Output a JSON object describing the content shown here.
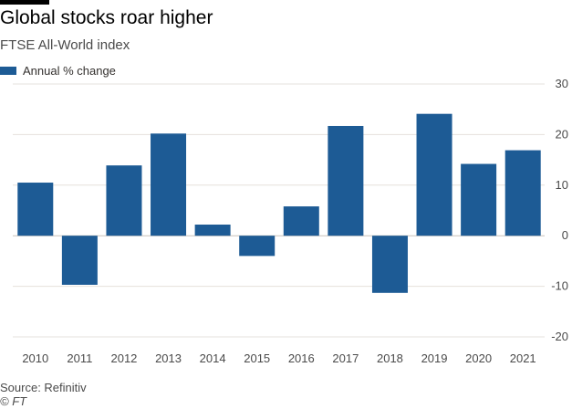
{
  "header": {
    "title": "Global stocks roar higher",
    "subtitle": "FTSE All-World index"
  },
  "legend": {
    "label": "Annual % change"
  },
  "colors": {
    "bar": "#1d5b95",
    "grid": "#e6e1dc",
    "zero": "#c9c2bb",
    "tick": "#4a4a4a",
    "accent_bar": "#000000"
  },
  "chart_data": {
    "type": "bar",
    "title": "Global stocks roar higher",
    "subtitle": "FTSE All-World index",
    "xlabel": "",
    "ylabel": "Annual % change",
    "categories": [
      "2010",
      "2011",
      "2012",
      "2013",
      "2014",
      "2015",
      "2016",
      "2017",
      "2018",
      "2019",
      "2020",
      "2021"
    ],
    "series": [
      {
        "name": "Annual % change",
        "values": [
          10.5,
          -9.7,
          13.9,
          20.2,
          2.2,
          -4.0,
          5.8,
          21.7,
          -11.3,
          24.1,
          14.2,
          16.9
        ]
      }
    ],
    "ylim": [
      -20,
      30
    ],
    "yticks": [
      30,
      20,
      10,
      0,
      -10,
      -20
    ],
    "ytick_labels": [
      "30",
      "20",
      "10",
      "0",
      "-10",
      "-20"
    ],
    "grid": true,
    "legend_position": "top-left",
    "yaxis_position": "right"
  },
  "footer": {
    "source": "Source: Refinitiv",
    "credit": "© FT"
  }
}
